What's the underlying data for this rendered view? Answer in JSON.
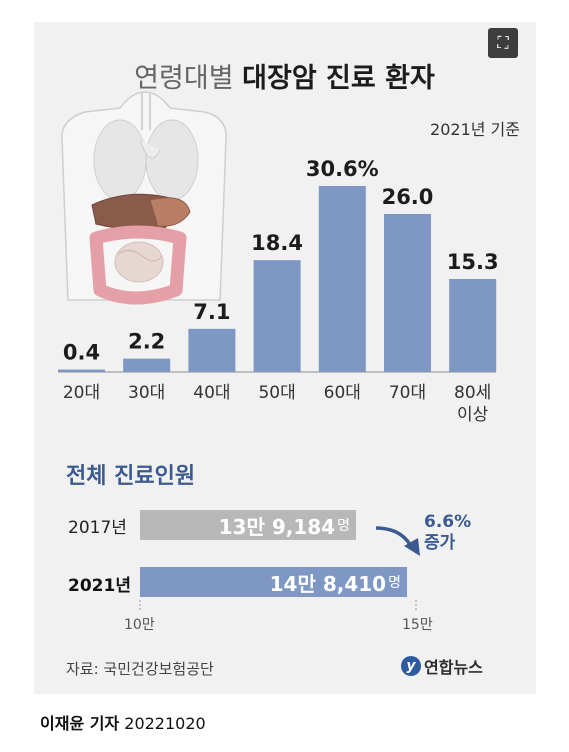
{
  "title_light": "연령대별",
  "title_bold": "대장암 진료 환자",
  "basis": "2021년 기준",
  "expand_icon_glyph": "⛶",
  "chart_data": {
    "type": "bar",
    "unit": "%",
    "categories": [
      "20대",
      "30대",
      "40대",
      "50대",
      "60대",
      "70대",
      "80세 이상"
    ],
    "values": [
      0.4,
      2.2,
      7.1,
      18.4,
      30.6,
      26.0,
      15.3
    ],
    "value_labels": [
      "0.4",
      "2.2",
      "7.1",
      "18.4",
      "30.6%",
      "26.0",
      "15.3"
    ],
    "bar_color": "#7e97c4",
    "ylim": [
      0,
      32
    ]
  },
  "totals": {
    "section_title": "전체 진료인원",
    "rows": [
      {
        "year": "2017년",
        "value_text": "13만 9,184",
        "unit": "명",
        "value": 139184,
        "color": "#b8b8b8"
      },
      {
        "year": "2021년",
        "value_text": "14만 8,410",
        "unit": "명",
        "value": 148410,
        "color": "#7e97c4"
      }
    ],
    "axis_min_label": "10만",
    "axis_max_label": "15만",
    "axis_range": [
      100000,
      150000
    ],
    "increase_value": "6.6%",
    "increase_label": "증가",
    "accent_color": "#3b5b90"
  },
  "source": "자료: 국민건강보험공단",
  "logo_text": "연합뉴스",
  "byline_name": "이재윤 기자",
  "byline_date": "20221020"
}
